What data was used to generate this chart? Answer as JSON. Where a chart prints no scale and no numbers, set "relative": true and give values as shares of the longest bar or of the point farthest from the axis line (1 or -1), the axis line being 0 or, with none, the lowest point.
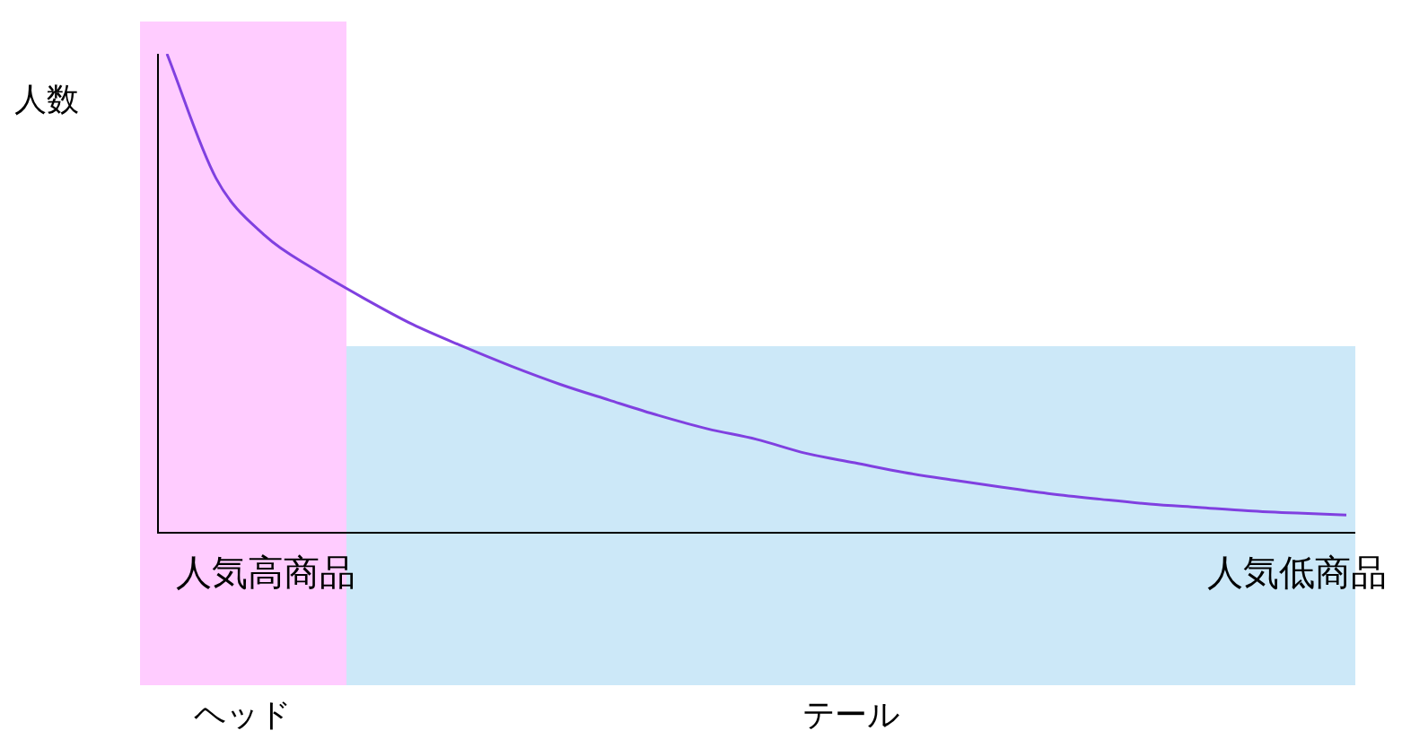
{
  "chart_data": {
    "type": "line",
    "relative": true,
    "ylabel": "人数",
    "categories": [
      null,
      null,
      "人気高商品",
      null,
      null,
      null,
      null,
      null,
      null,
      null,
      null,
      null,
      null,
      null,
      null,
      null,
      null,
      null,
      null,
      null,
      null,
      null,
      null,
      "人気低商品",
      null
    ],
    "series": [
      {
        "color": "#8040e0",
        "values": [
          1.0,
          0.74,
          0.62,
          0.55,
          0.49,
          0.435,
          0.39,
          0.348,
          0.31,
          0.277,
          0.245,
          0.217,
          0.195,
          0.166,
          0.146,
          0.126,
          0.11,
          0.095,
          0.081,
          0.07,
          0.06,
          0.053,
          0.046,
          0.041,
          0.037
        ]
      }
    ],
    "annotations": [
      "ヘッド",
      "テール"
    ],
    "grid": false,
    "legend": false,
    "marker": "none",
    "line_style": "solid"
  }
}
